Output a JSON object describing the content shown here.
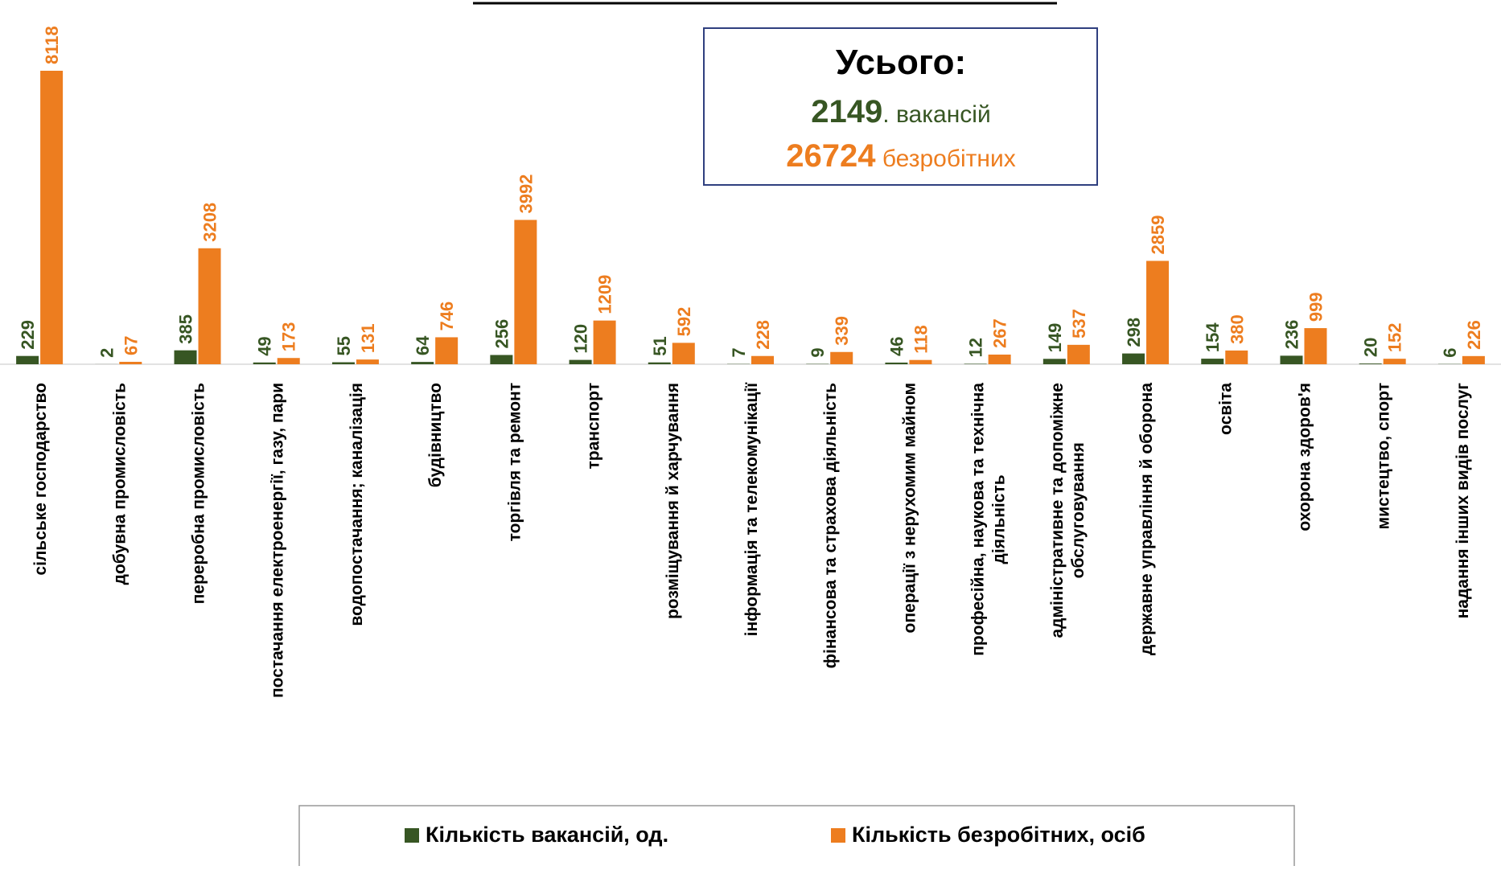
{
  "chart_data": {
    "type": "bar",
    "categories": [
      "сільське господарство",
      "добувна промисловість",
      "переробна промисловість",
      "постачання електроенергії, газу, пари",
      "водопостачання; каналізація",
      "будівництво",
      "торгівля та ремонт",
      "транспорт",
      "розміщування й харчування",
      "інформація та телекомунікації",
      "фінансова та страхова діяльність",
      "операції з нерухомим майном",
      "професійна, наукова та технічна\nдіяльність",
      "адміністративне та допоміжне\nобслуговування",
      "державне управління й оборона",
      "освіта",
      "охорона здоров'я",
      "мистецтво, спорт",
      "надання інших видів послуг"
    ],
    "series": [
      {
        "name": "Кількість вакансій,  од.",
        "color": "#375623",
        "values": [
          229,
          2,
          385,
          49,
          55,
          64,
          256,
          120,
          51,
          7,
          9,
          46,
          12,
          149,
          298,
          154,
          236,
          20,
          6
        ]
      },
      {
        "name": "Кількість безробітних, осіб",
        "color": "#ed7d1f",
        "values": [
          8118,
          67,
          3208,
          173,
          131,
          746,
          3992,
          1209,
          592,
          228,
          339,
          118,
          267,
          537,
          2859,
          380,
          999,
          152,
          226
        ]
      }
    ],
    "summary": {
      "title": "Усього:",
      "lines": [
        {
          "value": 2149,
          "text": ". вакансій"
        },
        {
          "value": 26724,
          "text": " безробітних"
        }
      ]
    }
  }
}
